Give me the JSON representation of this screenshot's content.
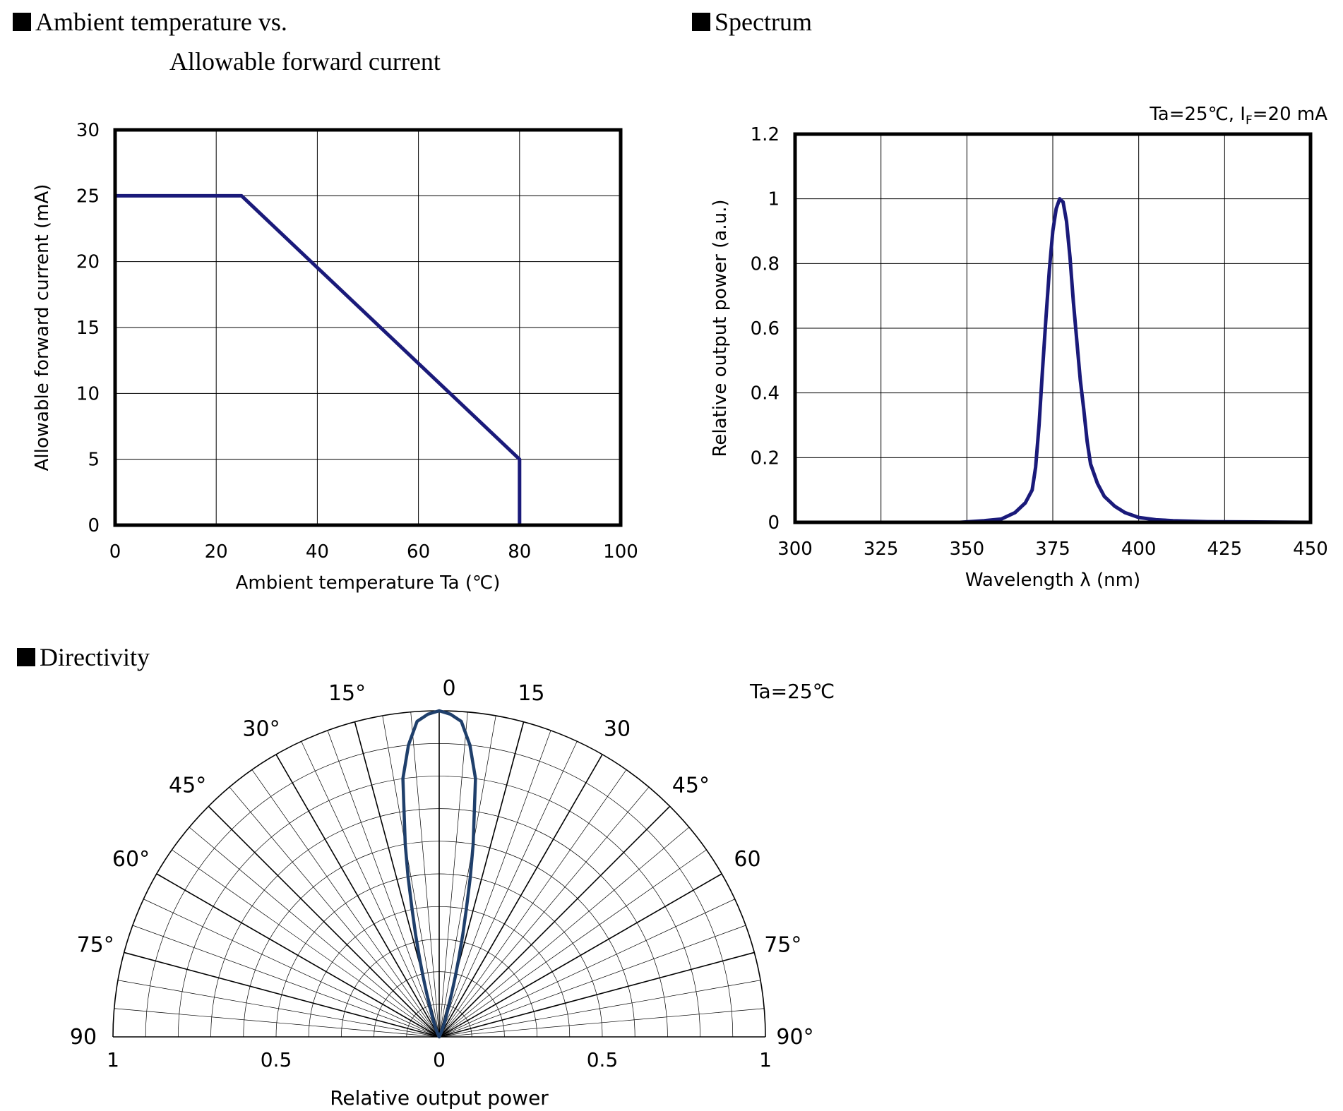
{
  "sections": {
    "derating_title_line1": "Ambient temperature vs.",
    "derating_title_line2": "Allowable forward current",
    "spectrum_title": "Spectrum",
    "directivity_title": "Directivity"
  },
  "colors": {
    "curve": "#1a1a7a",
    "directivity_curve": "#1f3f6b",
    "grid": "#000000"
  },
  "chart_data": [
    {
      "type": "line",
      "title": "Ambient temperature vs. Allowable forward current",
      "xlabel": "Ambient temperature Ta (℃)",
      "ylabel": "Allowable forward current (mA)",
      "xlim": [
        0,
        100
      ],
      "ylim": [
        0,
        30
      ],
      "xticks": [
        0,
        20,
        40,
        60,
        80,
        100
      ],
      "yticks": [
        0,
        5,
        10,
        15,
        20,
        25,
        30
      ],
      "xtick_labels": [
        "0",
        "20",
        "40",
        "60",
        "80",
        "100"
      ],
      "ytick_labels": [
        "0",
        "5",
        "10",
        "15",
        "20",
        "25",
        "30"
      ],
      "grid": true,
      "series": [
        {
          "x": [
            0,
            25,
            80,
            80
          ],
          "y": [
            25,
            25,
            5,
            0
          ]
        }
      ]
    },
    {
      "type": "line",
      "title": "Spectrum",
      "annotation": "Ta=25℃, I",
      "annotation_sub": "F",
      "annotation_tail": "=20 mA",
      "xlabel": "Wavelength λ (nm)",
      "ylabel": "Relative output power (a.u.)",
      "xlim": [
        300,
        450
      ],
      "ylim": [
        0,
        1.2
      ],
      "xticks": [
        300,
        325,
        350,
        375,
        400,
        425,
        450
      ],
      "yticks": [
        0,
        0.2,
        0.4,
        0.6,
        0.8,
        1.0,
        1.2
      ],
      "xtick_labels": [
        "300",
        "325",
        "350",
        "375",
        "400",
        "425",
        "450"
      ],
      "ytick_labels": [
        "0",
        "0.2",
        "0.4",
        "0.6",
        "0.8",
        "1",
        "1.2"
      ],
      "grid": true,
      "series": [
        {
          "x": [
            300,
            348,
            355,
            360,
            364,
            367,
            369,
            370,
            371,
            372,
            373,
            374,
            375,
            376,
            377,
            378,
            379,
            380,
            381,
            382,
            383,
            384,
            385,
            386,
            388,
            390,
            393,
            396,
            400,
            405,
            410,
            420,
            450
          ],
          "y": [
            0,
            0,
            0.005,
            0.01,
            0.03,
            0.06,
            0.1,
            0.17,
            0.3,
            0.47,
            0.63,
            0.78,
            0.9,
            0.97,
            1.0,
            0.99,
            0.93,
            0.82,
            0.68,
            0.56,
            0.44,
            0.35,
            0.25,
            0.18,
            0.12,
            0.08,
            0.05,
            0.03,
            0.015,
            0.008,
            0.005,
            0.002,
            0
          ]
        }
      ]
    },
    {
      "type": "polar",
      "title": "Directivity",
      "annotation": "Ta=25℃",
      "xlabel": "Relative output power",
      "angle_labels_left": [
        "15°",
        "30°",
        "45°",
        "60°",
        "75°",
        "90"
      ],
      "angle_labels_right": [
        "15",
        "30",
        "45°",
        "60",
        "75°",
        "90°"
      ],
      "angle_label_top": "0",
      "angle_label_values": [
        15,
        30,
        45,
        60,
        75,
        90
      ],
      "radial_tick_labels": [
        "1",
        "0.5",
        "0",
        "0.5",
        "1"
      ],
      "radial_ticks": [
        -1,
        -0.5,
        0,
        0.5,
        1
      ],
      "radial_rings": [
        0.1,
        0.2,
        0.3,
        0.4,
        0.5,
        0.6,
        0.7,
        0.8,
        0.9,
        1.0
      ],
      "grid": true,
      "series": [
        {
          "angle_deg": [
            0,
            2,
            4,
            6,
            8,
            10,
            11,
            12,
            13,
            14,
            15,
            16,
            18,
            20,
            22,
            25,
            30
          ],
          "relative_power": [
            1.0,
            0.99,
            0.97,
            0.9,
            0.8,
            0.6,
            0.5,
            0.4,
            0.32,
            0.25,
            0.19,
            0.14,
            0.08,
            0.05,
            0.03,
            0.015,
            0
          ]
        }
      ]
    }
  ]
}
